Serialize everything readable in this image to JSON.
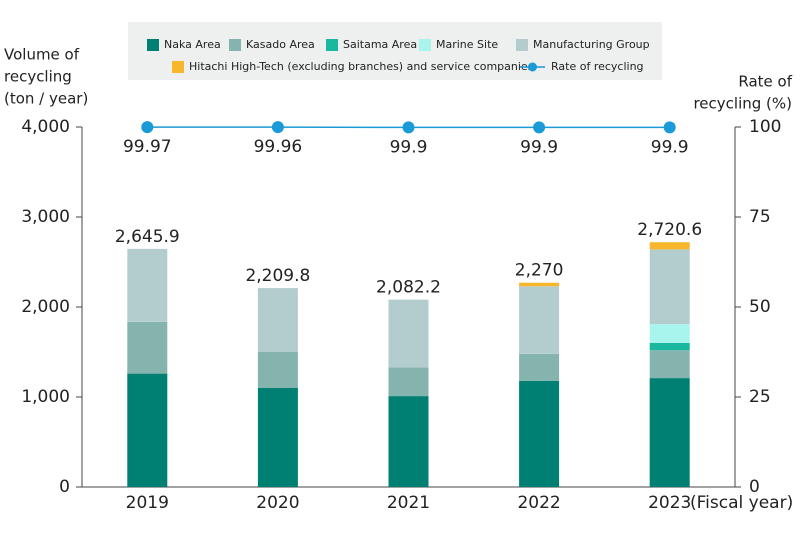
{
  "chart_data": {
    "type": "stacked-bar-line",
    "ylabel_lines": [
      "Volume of",
      "recycling",
      "(ton / year)"
    ],
    "y2label_lines": [
      "Rate of",
      "recycling (%)"
    ],
    "xlabel": "(Fiscal year)",
    "categories": [
      "2019",
      "2020",
      "2021",
      "2022",
      "2023"
    ],
    "series": [
      {
        "name": "Naka Area",
        "color": "#007f73",
        "values": [
          1260,
          1100,
          1010,
          1180,
          1210
        ]
      },
      {
        "name": "Kasado Area",
        "color": "#85b3ae",
        "values": [
          575,
          400,
          320,
          300,
          310
        ]
      },
      {
        "name": "Saitama Area",
        "color": "#1ab89e",
        "values": [
          0,
          0,
          0,
          0,
          80
        ]
      },
      {
        "name": "Marine Site",
        "color": "#a8f5ee",
        "values": [
          0,
          0,
          0,
          0,
          210
        ]
      },
      {
        "name": "Manufacturing Group",
        "color": "#b3cdcf",
        "values": [
          811,
          710,
          752,
          750,
          830
        ]
      },
      {
        "name": "Hitachi High-Tech (excluding branches) and service companies",
        "color": "#f8b62c",
        "values": [
          0,
          0,
          0,
          40,
          80
        ]
      },
      {
        "name": "Rate of recycling",
        "color": "#1a9ad6",
        "axis": "y2",
        "type": "line",
        "values": [
          99.97,
          99.96,
          99.9,
          99.9,
          99.9
        ]
      }
    ],
    "totals": {
      "values": [
        2645.9,
        2209.8,
        2082.2,
        2270,
        2720.6
      ],
      "value_labels": [
        "2,645.9",
        "2,209.8",
        "2,082.2",
        "2,270",
        "2,720.6"
      ]
    },
    "ylim": [
      0,
      4000
    ],
    "yticks": [
      0,
      {
        "value": 1000,
        "label": "1,000"
      },
      {
        "value": 2000,
        "label": "2,000"
      },
      {
        "value": 3000,
        "label": "3,000"
      },
      {
        "value": 4000,
        "label": "4,000"
      }
    ],
    "y2lim": [
      0,
      100
    ],
    "y2ticks": [
      0,
      25,
      50,
      75,
      100
    ],
    "grid": false
  }
}
